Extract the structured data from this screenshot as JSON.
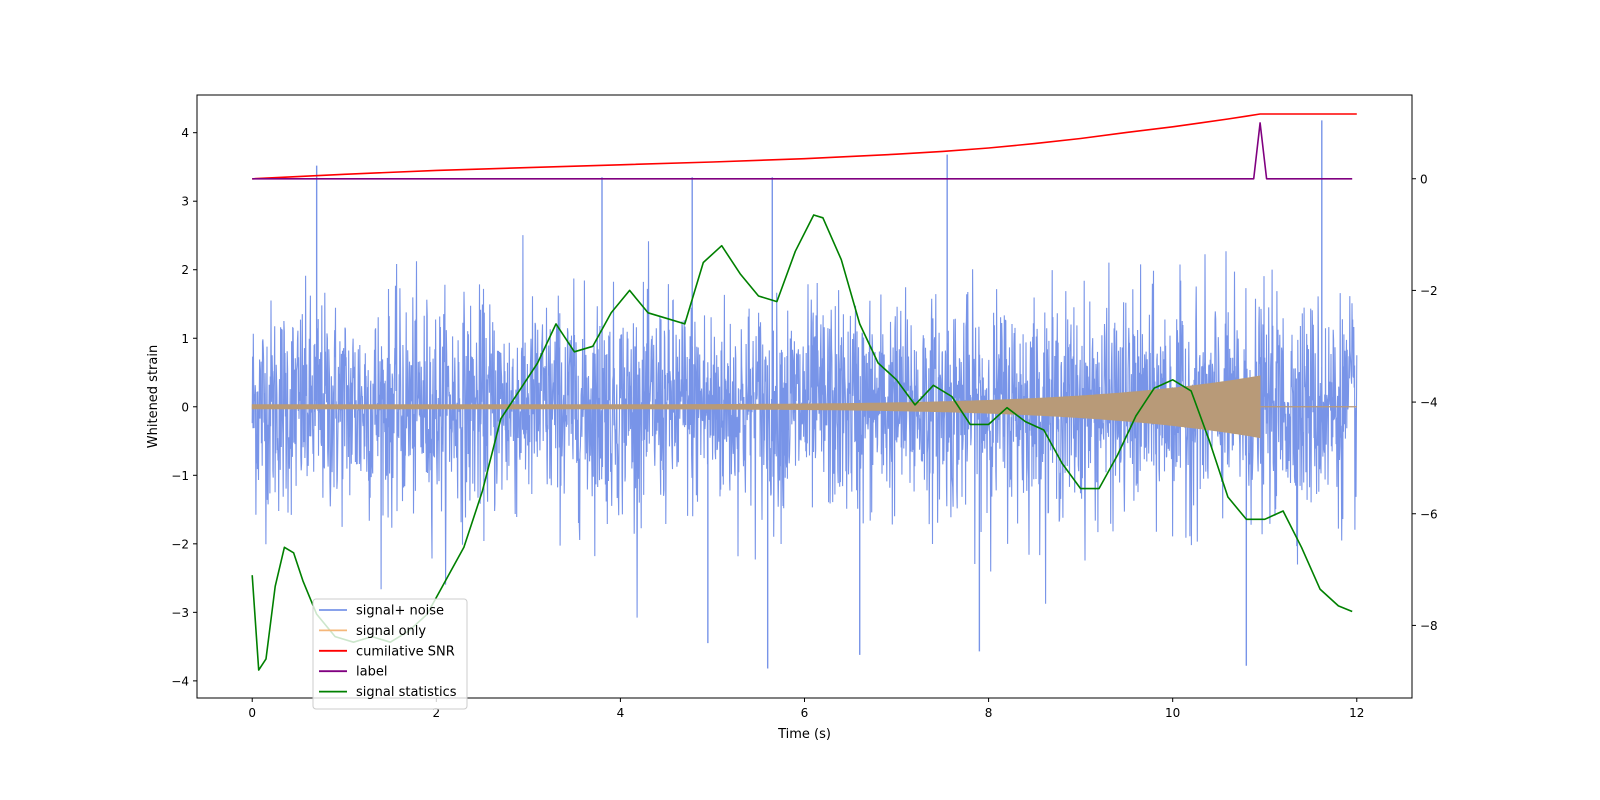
{
  "chart_data": {
    "type": "line",
    "xlabel": "Time (s)",
    "ylabel": "Whitened strain",
    "ylabel_right": "",
    "xlim": [
      -0.6,
      12.6
    ],
    "ylim": [
      -4.25,
      4.55
    ],
    "ylim_right": [
      -9.3,
      1.5
    ],
    "x_ticks": [
      0,
      2,
      4,
      6,
      8,
      10,
      12
    ],
    "y_ticks": [
      -4,
      -3,
      -2,
      -1,
      0,
      1,
      2,
      3,
      4
    ],
    "y_ticks_right": [
      -8,
      -6,
      -4,
      -2,
      0
    ],
    "grid": false,
    "legend_position": "lower-left",
    "legend": [
      {
        "label": "signal+ noise",
        "color": "#7894e8"
      },
      {
        "label": "signal only",
        "color": "#f5b77a"
      },
      {
        "label": "cumilative SNR",
        "color": "#ff0000"
      },
      {
        "label": "label",
        "color": "#800080"
      },
      {
        "label": "signal statistics",
        "color": "#008000"
      }
    ],
    "series": [
      {
        "axis": "left",
        "style": "noise",
        "color": "#7894e8",
        "x_range": [
          0,
          12
        ],
        "approx_sigma": 0.9,
        "approx_peak_range": [
          -3.8,
          4.2
        ],
        "spikes": [
          [
            0.7,
            3.52
          ],
          [
            3.8,
            3.35
          ],
          [
            4.78,
            3.35
          ],
          [
            5.65,
            3.35
          ],
          [
            7.55,
            3.68
          ],
          [
            11.62,
            4.18
          ],
          [
            5.6,
            -3.82
          ],
          [
            10.8,
            -3.78
          ],
          [
            4.95,
            -3.45
          ],
          [
            6.6,
            -3.62
          ],
          [
            7.9,
            -3.57
          ]
        ]
      },
      {
        "axis": "left",
        "style": "chirp",
        "color": "#b89a78",
        "x_range": [
          0,
          10.95
        ],
        "start_amplitude": 0.03,
        "peak_amplitude": 0.45,
        "merger_time": 10.95
      },
      {
        "axis": "right",
        "style": "line",
        "color": "#ff0000",
        "x": [
          0,
          1,
          2,
          3,
          4,
          5,
          6,
          7,
          7.5,
          8,
          8.5,
          9,
          9.5,
          10,
          10.3,
          10.6,
          10.8,
          10.95,
          11.2,
          11.6,
          12
        ],
        "y": [
          0.0,
          0.08,
          0.15,
          0.2,
          0.25,
          0.3,
          0.36,
          0.44,
          0.49,
          0.55,
          0.63,
          0.72,
          0.83,
          0.93,
          1.0,
          1.07,
          1.12,
          1.16,
          1.16,
          1.16,
          1.16
        ]
      },
      {
        "axis": "right",
        "style": "line",
        "color": "#800080",
        "x": [
          0,
          10.88,
          10.95,
          11.02,
          11.95
        ],
        "y": [
          0,
          0,
          1.0,
          0,
          0
        ]
      },
      {
        "axis": "right",
        "style": "line",
        "color": "#008000",
        "x": [
          0,
          0.07,
          0.15,
          0.25,
          0.35,
          0.45,
          0.55,
          0.7,
          0.9,
          1.1,
          1.3,
          1.5,
          1.7,
          1.9,
          2.1,
          2.3,
          2.5,
          2.7,
          2.9,
          3.1,
          3.3,
          3.5,
          3.7,
          3.9,
          4.1,
          4.3,
          4.5,
          4.7,
          4.9,
          5.1,
          5.3,
          5.5,
          5.7,
          5.9,
          6.1,
          6.2,
          6.4,
          6.6,
          6.8,
          7.0,
          7.2,
          7.4,
          7.6,
          7.8,
          8.0,
          8.2,
          8.4,
          8.6,
          8.8,
          9.0,
          9.2,
          9.4,
          9.6,
          9.8,
          10.0,
          10.2,
          10.4,
          10.6,
          10.8,
          11.0,
          11.2,
          11.4,
          11.6,
          11.8,
          11.95
        ],
        "y": [
          -7.1,
          -8.8,
          -8.6,
          -7.3,
          -6.6,
          -6.7,
          -7.2,
          -7.8,
          -8.2,
          -8.3,
          -8.2,
          -8.3,
          -8.1,
          -7.8,
          -7.2,
          -6.6,
          -5.6,
          -4.3,
          -3.8,
          -3.3,
          -2.6,
          -3.1,
          -3.0,
          -2.4,
          -2.0,
          -2.4,
          -2.5,
          -2.6,
          -1.5,
          -1.2,
          -1.7,
          -2.1,
          -2.2,
          -1.3,
          -0.65,
          -0.7,
          -1.45,
          -2.6,
          -3.3,
          -3.6,
          -4.05,
          -3.7,
          -3.9,
          -4.4,
          -4.4,
          -4.1,
          -4.35,
          -4.5,
          -5.1,
          -5.55,
          -5.55,
          -4.95,
          -4.25,
          -3.75,
          -3.6,
          -3.8,
          -4.7,
          -5.7,
          -6.1,
          -6.1,
          -5.95,
          -6.6,
          -7.35,
          -7.65,
          -7.75
        ]
      }
    ]
  }
}
